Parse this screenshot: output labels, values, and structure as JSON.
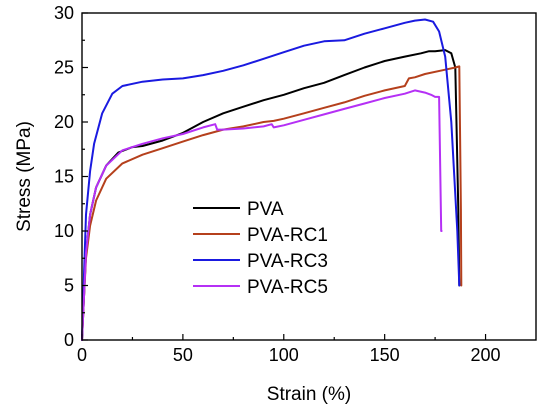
{
  "chart_data": {
    "type": "line",
    "xlabel": "Strain (%)",
    "ylabel": "Stress (MPa)",
    "xlim": [
      0,
      225
    ],
    "ylim": [
      0,
      30
    ],
    "xticks": [
      0,
      50,
      100,
      150,
      200
    ],
    "yticks": [
      0,
      5,
      10,
      15,
      20,
      25,
      30
    ],
    "grid": false,
    "legend_position": "center-bottom",
    "series": [
      {
        "name": "PVA",
        "color": "#000000",
        "x": [
          0,
          1,
          2,
          4,
          7,
          12,
          18,
          25,
          30,
          40,
          50,
          60,
          70,
          80,
          90,
          100,
          110,
          120,
          130,
          140,
          150,
          160,
          168,
          172,
          175,
          180,
          183,
          185,
          186.5,
          187
        ],
        "y": [
          0,
          4,
          8,
          11.5,
          14,
          16,
          17.2,
          17.7,
          17.8,
          18.3,
          19,
          20,
          20.8,
          21.4,
          22,
          22.5,
          23.1,
          23.6,
          24.3,
          25,
          25.6,
          26,
          26.3,
          26.5,
          26.5,
          26.6,
          26.3,
          25,
          12,
          5
        ]
      },
      {
        "name": "PVA-RC1",
        "color": "#b5401c",
        "x": [
          0,
          1,
          2,
          4,
          7,
          12,
          20,
          30,
          40,
          50,
          60,
          70,
          80,
          90,
          95,
          100,
          110,
          120,
          130,
          140,
          150,
          160,
          162,
          165,
          170,
          180,
          185,
          187,
          187.8,
          188
        ],
        "y": [
          0,
          4,
          7.5,
          10.5,
          12.8,
          14.8,
          16.2,
          17,
          17.6,
          18.2,
          18.8,
          19.3,
          19.6,
          20,
          20.1,
          20.3,
          20.8,
          21.3,
          21.8,
          22.4,
          22.9,
          23.3,
          24,
          24.1,
          24.4,
          24.8,
          25,
          25.1,
          12,
          5
        ]
      },
      {
        "name": "PVA-RC3",
        "color": "#1a1ae0",
        "x": [
          0,
          1,
          2,
          4,
          6,
          10,
          15,
          20,
          30,
          40,
          50,
          60,
          70,
          80,
          90,
          100,
          110,
          120,
          130,
          140,
          150,
          160,
          165,
          170,
          174,
          177,
          180,
          183,
          186,
          187
        ],
        "y": [
          0,
          6,
          11.5,
          15.5,
          18,
          20.8,
          22.6,
          23.3,
          23.7,
          23.9,
          24,
          24.3,
          24.7,
          25.2,
          25.8,
          26.4,
          27,
          27.4,
          27.5,
          28.1,
          28.6,
          29.1,
          29.3,
          29.4,
          29.2,
          28.3,
          26,
          20,
          10,
          5
        ]
      },
      {
        "name": "PVA-RC5",
        "color": "#b530f5",
        "x": [
          0,
          1,
          2,
          4,
          7,
          12,
          20,
          30,
          40,
          50,
          60,
          66,
          67,
          70,
          80,
          90,
          94,
          95,
          100,
          110,
          120,
          130,
          140,
          150,
          160,
          165,
          170,
          173,
          175,
          177,
          178,
          178.2
        ],
        "y": [
          0,
          4,
          8,
          11.5,
          14,
          16,
          17.4,
          18,
          18.5,
          18.9,
          19.5,
          19.8,
          19.3,
          19.3,
          19.4,
          19.6,
          19.8,
          19.5,
          19.7,
          20.2,
          20.7,
          21.2,
          21.7,
          22.2,
          22.6,
          22.9,
          22.7,
          22.5,
          22.3,
          22.3,
          10,
          10
        ]
      }
    ]
  }
}
